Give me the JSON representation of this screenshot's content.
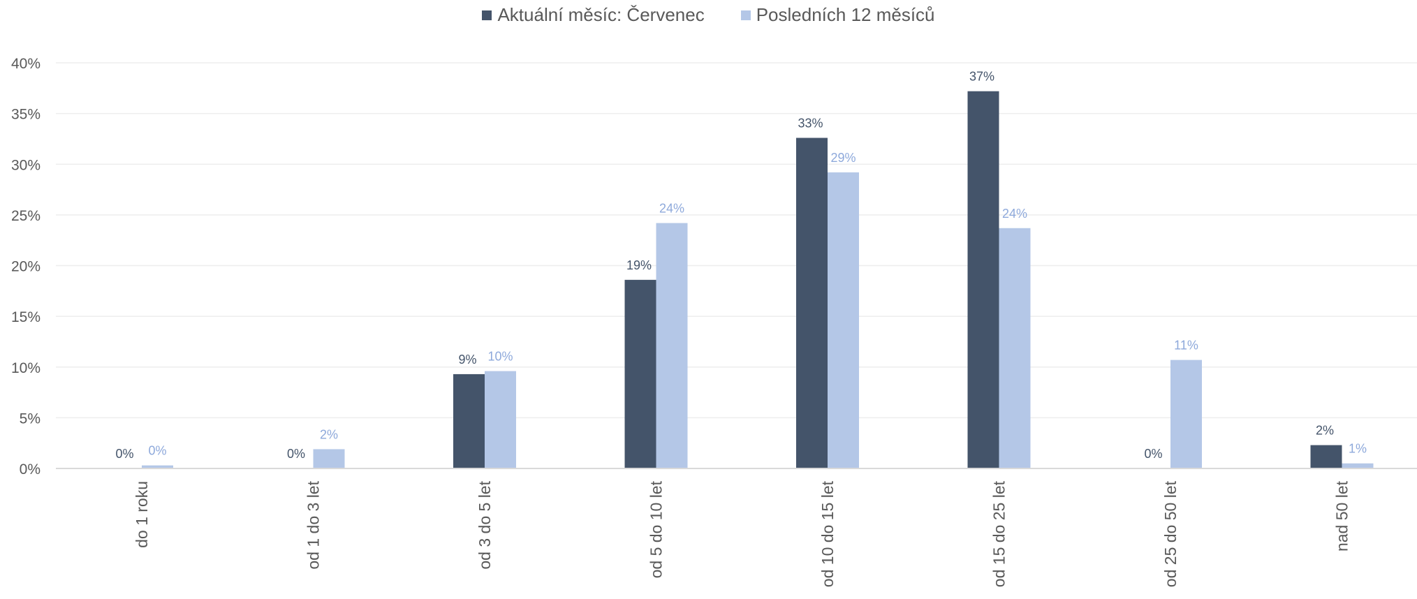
{
  "chart_data": {
    "type": "bar",
    "categories": [
      "do 1 roku",
      "od 1 do 3 let",
      "od 3 do 5 let",
      "od 5 do 10 let",
      "od 10 do 15 let",
      "od 15 do 25 let",
      "od 25 do 50 let",
      "nad 50 let"
    ],
    "series": [
      {
        "name": "Aktuální měsíc: Červenec",
        "color": "#44546A",
        "label_color": "#44546A",
        "values": [
          0,
          0,
          9.3,
          18.6,
          32.6,
          37.2,
          0,
          2.3
        ],
        "labels": [
          "0%",
          "0%",
          "9%",
          "19%",
          "33%",
          "37%",
          "0%",
          "2%"
        ]
      },
      {
        "name": "Posledních 12 měsíců",
        "color": "#B4C7E7",
        "label_color": "#8EA9DB",
        "values": [
          0.3,
          1.9,
          9.6,
          24.2,
          29.2,
          23.7,
          10.7,
          0.5
        ],
        "labels": [
          "0%",
          "2%",
          "10%",
          "24%",
          "29%",
          "24%",
          "11%",
          "1%"
        ]
      }
    ],
    "yticks": [
      "0%",
      "5%",
      "10%",
      "15%",
      "20%",
      "25%",
      "30%",
      "35%",
      "40%"
    ],
    "ylim": [
      0,
      40
    ],
    "grid": true,
    "legend_position": "top-center"
  }
}
